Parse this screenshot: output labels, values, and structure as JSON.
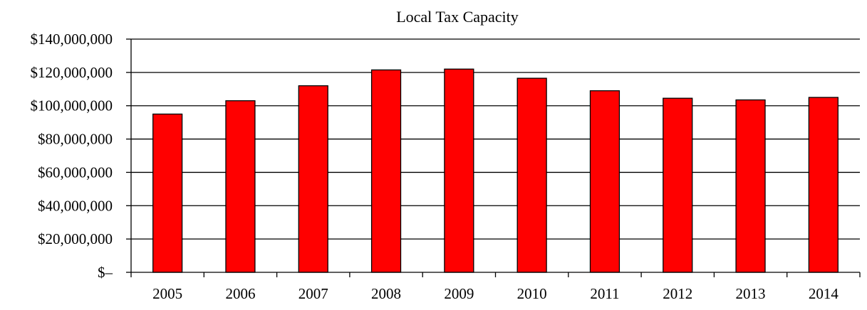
{
  "chart_data": {
    "type": "bar",
    "title": "Local Tax Capacity",
    "xlabel": "",
    "ylabel": "",
    "categories": [
      "2005",
      "2006",
      "2007",
      "2008",
      "2009",
      "2010",
      "2011",
      "2012",
      "2013",
      "2014"
    ],
    "values": [
      95000000,
      103000000,
      112000000,
      121500000,
      122000000,
      116500000,
      109000000,
      104500000,
      103500000,
      105000000
    ],
    "ylim": [
      0,
      140000000
    ],
    "yticks": [
      0,
      20000000,
      40000000,
      60000000,
      80000000,
      100000000,
      120000000,
      140000000
    ],
    "ytick_labels": [
      "$–",
      "$20,000,000",
      "$40,000,000",
      "$60,000,000",
      "$80,000,000",
      "$100,000,000",
      "$120,000,000",
      "$140,000,000"
    ],
    "grid": true,
    "legend": "none",
    "colors": {
      "bar_fill": "#ff0000",
      "bar_stroke": "#000000",
      "gridline": "#000000",
      "axis": "#000000"
    }
  }
}
